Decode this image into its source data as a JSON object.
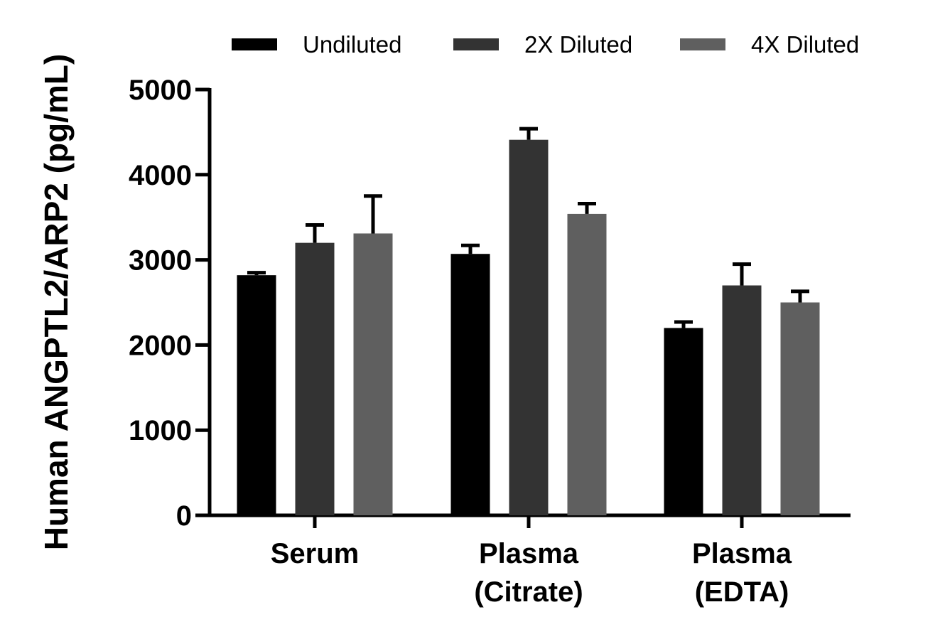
{
  "chart_data": {
    "type": "bar",
    "title": "",
    "xlabel": "",
    "ylabel": "Human ANGPTL2/ARP2 (pg/mL)",
    "ylim": [
      0,
      5000
    ],
    "yticks": [
      "0",
      "1000",
      "2000",
      "3000",
      "4000",
      "5000"
    ],
    "categories": [
      [
        "Serum"
      ],
      [
        "Plasma",
        "(Citrate)"
      ],
      [
        "Plasma",
        "(EDTA)"
      ]
    ],
    "legend_position": "top",
    "series": [
      {
        "name": "Undiluted",
        "color": "#000000",
        "values": [
          2820,
          3070,
          2200
        ],
        "errors": [
          30,
          100,
          70
        ]
      },
      {
        "name": "2X Diluted",
        "color": "#333333",
        "values": [
          3200,
          4410,
          2700
        ],
        "errors": [
          210,
          130,
          250
        ]
      },
      {
        "name": "4X Diluted",
        "color": "#5f5f5f",
        "values": [
          3310,
          3540,
          2500
        ],
        "errors": [
          440,
          120,
          130
        ]
      }
    ],
    "grid": false
  }
}
